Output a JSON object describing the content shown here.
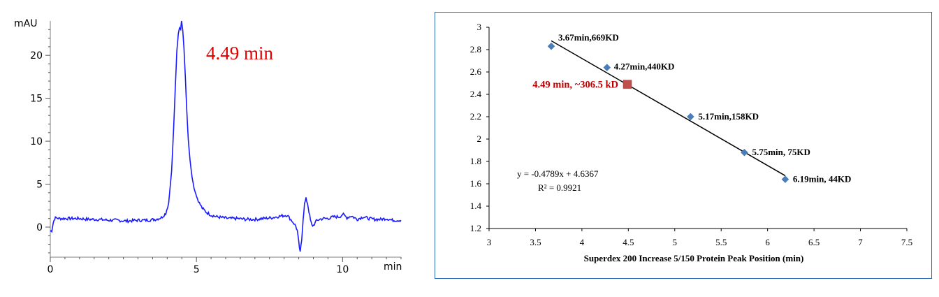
{
  "chart_data": [
    {
      "type": "line",
      "title": "",
      "ylabel": "mAU",
      "xlabel": "min",
      "xlim": [
        0,
        12
      ],
      "ylim": [
        -3.5,
        24
      ],
      "x_ticks": [
        "0",
        "5",
        "10"
      ],
      "y_ticks": [
        "0",
        "5",
        "10",
        "15",
        "20"
      ],
      "line_color": "#1a1aff",
      "annotation": {
        "text": "4.49 min",
        "color": "#e00000"
      },
      "series": [
        {
          "x": [
            0.0,
            0.05,
            0.1,
            0.15,
            0.2,
            0.3,
            0.5,
            0.8,
            1.0,
            1.3,
            1.6,
            2.0,
            2.3,
            2.6,
            3.0,
            3.3,
            3.6,
            3.8,
            3.95,
            4.05,
            4.15,
            4.22,
            4.28,
            4.33,
            4.38,
            4.42,
            4.46,
            4.49,
            4.53,
            4.57,
            4.62,
            4.67,
            4.72,
            4.78,
            4.85,
            4.92,
            5.0,
            5.1,
            5.2,
            5.35,
            5.5,
            5.7,
            5.9,
            6.1,
            6.4,
            6.7,
            7.0,
            7.3,
            7.6,
            7.9,
            8.1,
            8.2,
            8.3,
            8.4,
            8.45,
            8.5,
            8.55,
            8.6,
            8.65,
            8.7,
            8.75,
            8.8,
            8.85,
            8.9,
            8.95,
            9.0,
            9.1,
            9.2,
            9.35,
            9.5,
            9.7,
            9.9,
            10.0,
            10.05,
            10.15,
            10.3,
            10.5,
            10.7,
            10.9,
            11.1,
            11.3,
            11.5,
            11.7,
            11.9,
            12.0
          ],
          "y": [
            -0.5,
            -0.4,
            0.5,
            1.0,
            1.1,
            1.0,
            1.0,
            1.0,
            1.0,
            0.9,
            0.9,
            0.8,
            0.8,
            0.7,
            0.8,
            0.8,
            0.9,
            1.1,
            1.6,
            2.8,
            6.5,
            11.5,
            16.5,
            20.5,
            22.5,
            23.2,
            23.0,
            24.0,
            23.0,
            21.0,
            17.5,
            13.5,
            10.2,
            7.8,
            5.8,
            4.5,
            3.6,
            2.8,
            2.2,
            1.7,
            1.4,
            1.2,
            1.1,
            1.0,
            1.0,
            0.9,
            0.9,
            1.0,
            1.1,
            1.3,
            1.4,
            1.0,
            0.6,
            0.1,
            -0.4,
            -1.8,
            -3.0,
            -1.5,
            1.0,
            2.7,
            3.3,
            2.8,
            1.8,
            0.8,
            0.2,
            0.2,
            0.7,
            0.9,
            1.0,
            1.0,
            1.2,
            1.2,
            1.5,
            1.4,
            1.1,
            1.3,
            0.9,
            1.2,
            1.0,
            0.9,
            0.9,
            1.0,
            0.8,
            0.8,
            0.8
          ]
        }
      ]
    },
    {
      "type": "scatter",
      "title": "",
      "xlabel": "Superdex 200 Increase 5/150  Protein Peak Position (min)",
      "ylabel": "",
      "xlim": [
        3,
        7.5
      ],
      "ylim": [
        1.2,
        3
      ],
      "x_ticks": [
        "3",
        "3.5",
        "4",
        "4.5",
        "5",
        "5.5",
        "6",
        "6.5",
        "7",
        "7.5"
      ],
      "y_ticks": [
        "1.2",
        "1.4",
        "1.6",
        "1.8",
        "2",
        "2.2",
        "2.4",
        "2.6",
        "2.8",
        "3"
      ],
      "marker_color": "#4a7ebb",
      "points": [
        {
          "x": 3.67,
          "y": 2.83,
          "label": "3.67min,669KD"
        },
        {
          "x": 4.27,
          "y": 2.64,
          "label": "4.27min,440KD"
        },
        {
          "x": 5.17,
          "y": 2.2,
          "label": "5.17min,158KD"
        },
        {
          "x": 5.75,
          "y": 1.88,
          "label": "5.75min, 75KD"
        },
        {
          "x": 6.19,
          "y": 1.64,
          "label": "6.19min, 44KD"
        }
      ],
      "unknown_point": {
        "x": 4.49,
        "y": 2.49,
        "label": "4.49 min, ~306.5 kD",
        "color": "#c0504d",
        "label_color": "#c00000"
      },
      "trendline": {
        "slope": -0.4789,
        "intercept": 4.6367,
        "x_from": 3.67,
        "x_to": 6.19
      },
      "equation": "y = -0.4789x + 4.6367",
      "r_squared": "R² = 0.9921"
    }
  ]
}
